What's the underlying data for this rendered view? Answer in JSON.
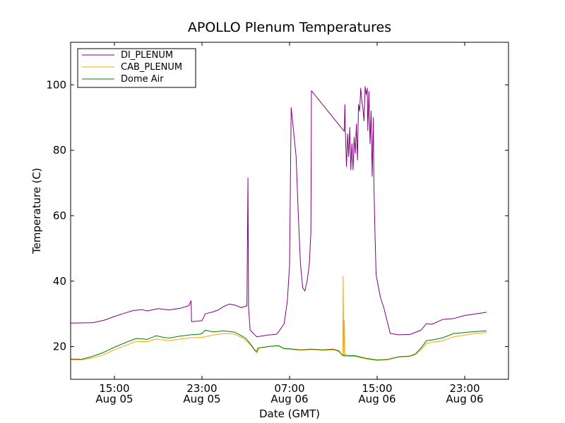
{
  "chart_data": {
    "type": "line",
    "title": "APOLLO Plenum Temperatures",
    "xlabel": "Date (GMT)",
    "ylabel": "Temperature (C)",
    "xlim": [
      -4.0,
      36.0
    ],
    "ylim": [
      10,
      113
    ],
    "legend_position": "top-left",
    "grid": false,
    "x_ticks": [
      {
        "x": 0,
        "line1": "15:00",
        "line2": "Aug 05"
      },
      {
        "x": 8,
        "line1": "23:00",
        "line2": "Aug 05"
      },
      {
        "x": 16,
        "line1": "07:00",
        "line2": "Aug 06"
      },
      {
        "x": 24,
        "line1": "15:00",
        "line2": "Aug 06"
      },
      {
        "x": 32,
        "line1": "23:00",
        "line2": "Aug 06"
      }
    ],
    "y_ticks": [
      20,
      40,
      60,
      80,
      100
    ],
    "series": [
      {
        "name": "DI_PLENUM",
        "color": "#800080",
        "points": [
          [
            -4.0,
            27.2
          ],
          [
            -2.0,
            27.3
          ],
          [
            -1.0,
            28.0
          ],
          [
            0.0,
            29.2
          ],
          [
            1.0,
            30.3
          ],
          [
            1.7,
            31.0
          ],
          [
            2.5,
            31.3
          ],
          [
            3.0,
            30.9
          ],
          [
            4.0,
            31.6
          ],
          [
            5.0,
            31.2
          ],
          [
            6.0,
            31.7
          ],
          [
            6.8,
            32.5
          ],
          [
            7.0,
            34.0
          ],
          [
            7.05,
            27.6
          ],
          [
            8.0,
            27.9
          ],
          [
            8.3,
            30.0
          ],
          [
            9.0,
            30.6
          ],
          [
            9.5,
            31.2
          ],
          [
            10.0,
            32.3
          ],
          [
            10.5,
            33.0
          ],
          [
            11.0,
            32.7
          ],
          [
            11.6,
            31.9
          ],
          [
            12.1,
            32.5
          ],
          [
            12.2,
            71.5
          ],
          [
            12.25,
            32.0
          ],
          [
            12.4,
            25.0
          ],
          [
            13.0,
            23.0
          ],
          [
            14.0,
            23.5
          ],
          [
            14.8,
            23.8
          ],
          [
            15.0,
            24.5
          ],
          [
            15.5,
            27.0
          ],
          [
            15.8,
            34.0
          ],
          [
            16.0,
            45.0
          ],
          [
            16.15,
            93.0
          ],
          [
            16.3,
            88.0
          ],
          [
            16.6,
            78.0
          ],
          [
            16.8,
            60.0
          ],
          [
            17.0,
            45.0
          ],
          [
            17.2,
            38.0
          ],
          [
            17.4,
            37.0
          ],
          [
            17.6,
            40.0
          ],
          [
            17.8,
            45.0
          ],
          [
            17.95,
            55.0
          ],
          [
            18.0,
            98.2
          ],
          [
            20.7,
            87.0
          ],
          [
            21.0,
            85.8
          ],
          [
            21.05,
            94.0
          ],
          [
            21.1,
            85.0
          ],
          [
            21.2,
            75.0
          ],
          [
            21.3,
            85.0
          ],
          [
            21.4,
            78.0
          ],
          [
            21.5,
            87.0
          ],
          [
            21.6,
            74.0
          ],
          [
            21.7,
            82.0
          ],
          [
            21.8,
            74.0
          ],
          [
            21.9,
            84.0
          ],
          [
            22.0,
            79.0
          ],
          [
            22.1,
            88.0
          ],
          [
            22.2,
            77.0
          ],
          [
            22.3,
            94.0
          ],
          [
            22.4,
            92.0
          ],
          [
            22.5,
            99.0
          ],
          [
            22.6,
            95.0
          ],
          [
            22.7,
            93.0
          ],
          [
            22.8,
            89.0
          ],
          [
            22.9,
            99.5
          ],
          [
            23.0,
            97.0
          ],
          [
            23.1,
            99.0
          ],
          [
            23.15,
            86.0
          ],
          [
            23.25,
            98.0
          ],
          [
            23.35,
            82.0
          ],
          [
            23.45,
            92.0
          ],
          [
            23.55,
            72.0
          ],
          [
            23.65,
            90.0
          ],
          [
            23.7,
            70.0
          ],
          [
            23.8,
            55.0
          ],
          [
            23.9,
            42.0
          ],
          [
            24.3,
            35.0
          ],
          [
            24.6,
            32.0
          ],
          [
            24.9,
            28.0
          ],
          [
            25.2,
            24.0
          ],
          [
            26.0,
            23.6
          ],
          [
            27.0,
            23.7
          ],
          [
            28.0,
            25.0
          ],
          [
            28.5,
            27.0
          ],
          [
            29.0,
            26.8
          ],
          [
            30.0,
            28.3
          ],
          [
            31.0,
            28.6
          ],
          [
            32.0,
            29.5
          ],
          [
            33.0,
            30.0
          ],
          [
            34.0,
            30.5
          ]
        ]
      },
      {
        "name": "CAB_PLENUM",
        "color": "#ffa500",
        "points": [
          [
            -4.0,
            16.0
          ],
          [
            -3.0,
            16.0
          ],
          [
            -2.0,
            16.5
          ],
          [
            -1.0,
            17.5
          ],
          [
            0.0,
            19.0
          ],
          [
            1.0,
            20.3
          ],
          [
            2.0,
            21.6
          ],
          [
            3.0,
            21.5
          ],
          [
            3.8,
            22.3
          ],
          [
            4.5,
            22.0
          ],
          [
            5.0,
            21.8
          ],
          [
            6.0,
            22.3
          ],
          [
            7.0,
            22.7
          ],
          [
            8.0,
            22.8
          ],
          [
            9.0,
            23.5
          ],
          [
            10.0,
            24.0
          ],
          [
            11.0,
            23.8
          ],
          [
            11.8,
            22.5
          ],
          [
            12.3,
            21.0
          ],
          [
            12.8,
            19.0
          ],
          [
            13.0,
            18.0
          ],
          [
            13.2,
            19.5
          ],
          [
            14.0,
            20.0
          ],
          [
            15.0,
            20.2
          ],
          [
            15.5,
            19.3
          ],
          [
            16.0,
            19.2
          ],
          [
            17.0,
            18.9
          ],
          [
            18.0,
            19.1
          ],
          [
            19.0,
            18.9
          ],
          [
            20.0,
            19.0
          ],
          [
            20.5,
            18.5
          ],
          [
            20.85,
            17.2
          ],
          [
            20.9,
            41.5
          ],
          [
            20.95,
            17.0
          ],
          [
            21.0,
            28.0
          ],
          [
            21.05,
            17.0
          ],
          [
            22.0,
            17.0
          ],
          [
            23.0,
            16.2
          ],
          [
            24.0,
            15.8
          ],
          [
            25.0,
            16.0
          ],
          [
            26.0,
            16.8
          ],
          [
            27.0,
            17.0
          ],
          [
            27.5,
            17.5
          ],
          [
            28.0,
            19.0
          ],
          [
            28.5,
            21.0
          ],
          [
            29.0,
            21.3
          ],
          [
            30.0,
            21.8
          ],
          [
            31.0,
            23.0
          ],
          [
            32.0,
            23.5
          ],
          [
            33.0,
            24.0
          ],
          [
            34.0,
            24.3
          ]
        ]
      },
      {
        "name": "Dome Air",
        "color": "#008000",
        "points": [
          [
            -4.0,
            16.2
          ],
          [
            -3.0,
            16.1
          ],
          [
            -2.0,
            17.0
          ],
          [
            -1.0,
            18.2
          ],
          [
            0.0,
            19.8
          ],
          [
            1.0,
            21.2
          ],
          [
            2.0,
            22.5
          ],
          [
            3.0,
            22.2
          ],
          [
            3.8,
            23.3
          ],
          [
            4.5,
            22.8
          ],
          [
            5.0,
            22.6
          ],
          [
            6.0,
            23.2
          ],
          [
            7.0,
            23.6
          ],
          [
            7.8,
            23.8
          ],
          [
            8.0,
            24.0
          ],
          [
            8.3,
            25.0
          ],
          [
            9.0,
            24.5
          ],
          [
            10.0,
            24.8
          ],
          [
            11.0,
            24.4
          ],
          [
            11.5,
            23.5
          ],
          [
            12.0,
            22.5
          ],
          [
            12.5,
            20.5
          ],
          [
            12.8,
            19.0
          ],
          [
            13.0,
            18.5
          ],
          [
            13.1,
            19.5
          ],
          [
            14.0,
            20.0
          ],
          [
            15.0,
            20.3
          ],
          [
            15.5,
            19.4
          ],
          [
            16.0,
            19.3
          ],
          [
            17.0,
            19.0
          ],
          [
            18.0,
            19.2
          ],
          [
            19.0,
            19.0
          ],
          [
            20.0,
            19.2
          ],
          [
            20.5,
            18.7
          ],
          [
            20.8,
            17.4
          ],
          [
            22.0,
            17.2
          ],
          [
            23.0,
            16.4
          ],
          [
            24.0,
            15.9
          ],
          [
            25.0,
            16.1
          ],
          [
            26.0,
            16.9
          ],
          [
            27.0,
            17.1
          ],
          [
            27.5,
            17.8
          ],
          [
            28.0,
            19.5
          ],
          [
            28.5,
            21.8
          ],
          [
            29.0,
            22.0
          ],
          [
            30.0,
            22.7
          ],
          [
            31.0,
            24.0
          ],
          [
            32.0,
            24.3
          ],
          [
            33.0,
            24.6
          ],
          [
            34.0,
            24.8
          ]
        ]
      }
    ]
  }
}
